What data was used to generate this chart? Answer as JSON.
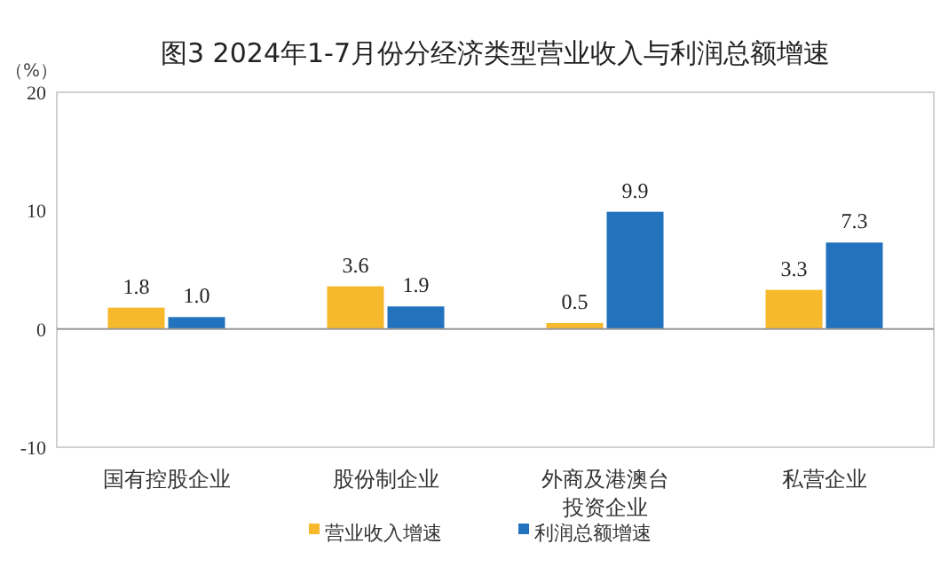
{
  "chart_data": {
    "type": "bar",
    "title": "图3  2024年1-7月份分经济类型营业收入与利润总额增速",
    "ylabel": "（%）",
    "categories": [
      "国有控股企业",
      "股份制企业",
      "外商及港澳台投资企业",
      "私营企业"
    ],
    "series": [
      {
        "name": "营业收入增速",
        "color": "#f7b92c",
        "values": [
          1.8,
          3.6,
          0.5,
          3.3
        ],
        "value_labels": [
          "1.8",
          "3.6",
          "0.5",
          "3.3"
        ]
      },
      {
        "name": "利润总额增速",
        "color": "#2272bd",
        "values": [
          1.0,
          1.9,
          9.9,
          7.3
        ],
        "value_labels": [
          "1.0",
          "1.9",
          "9.9",
          "7.3"
        ]
      }
    ],
    "ylim": [
      -10,
      20
    ],
    "yticks": [
      -10,
      0,
      10,
      20
    ],
    "legend": "bottom"
  }
}
